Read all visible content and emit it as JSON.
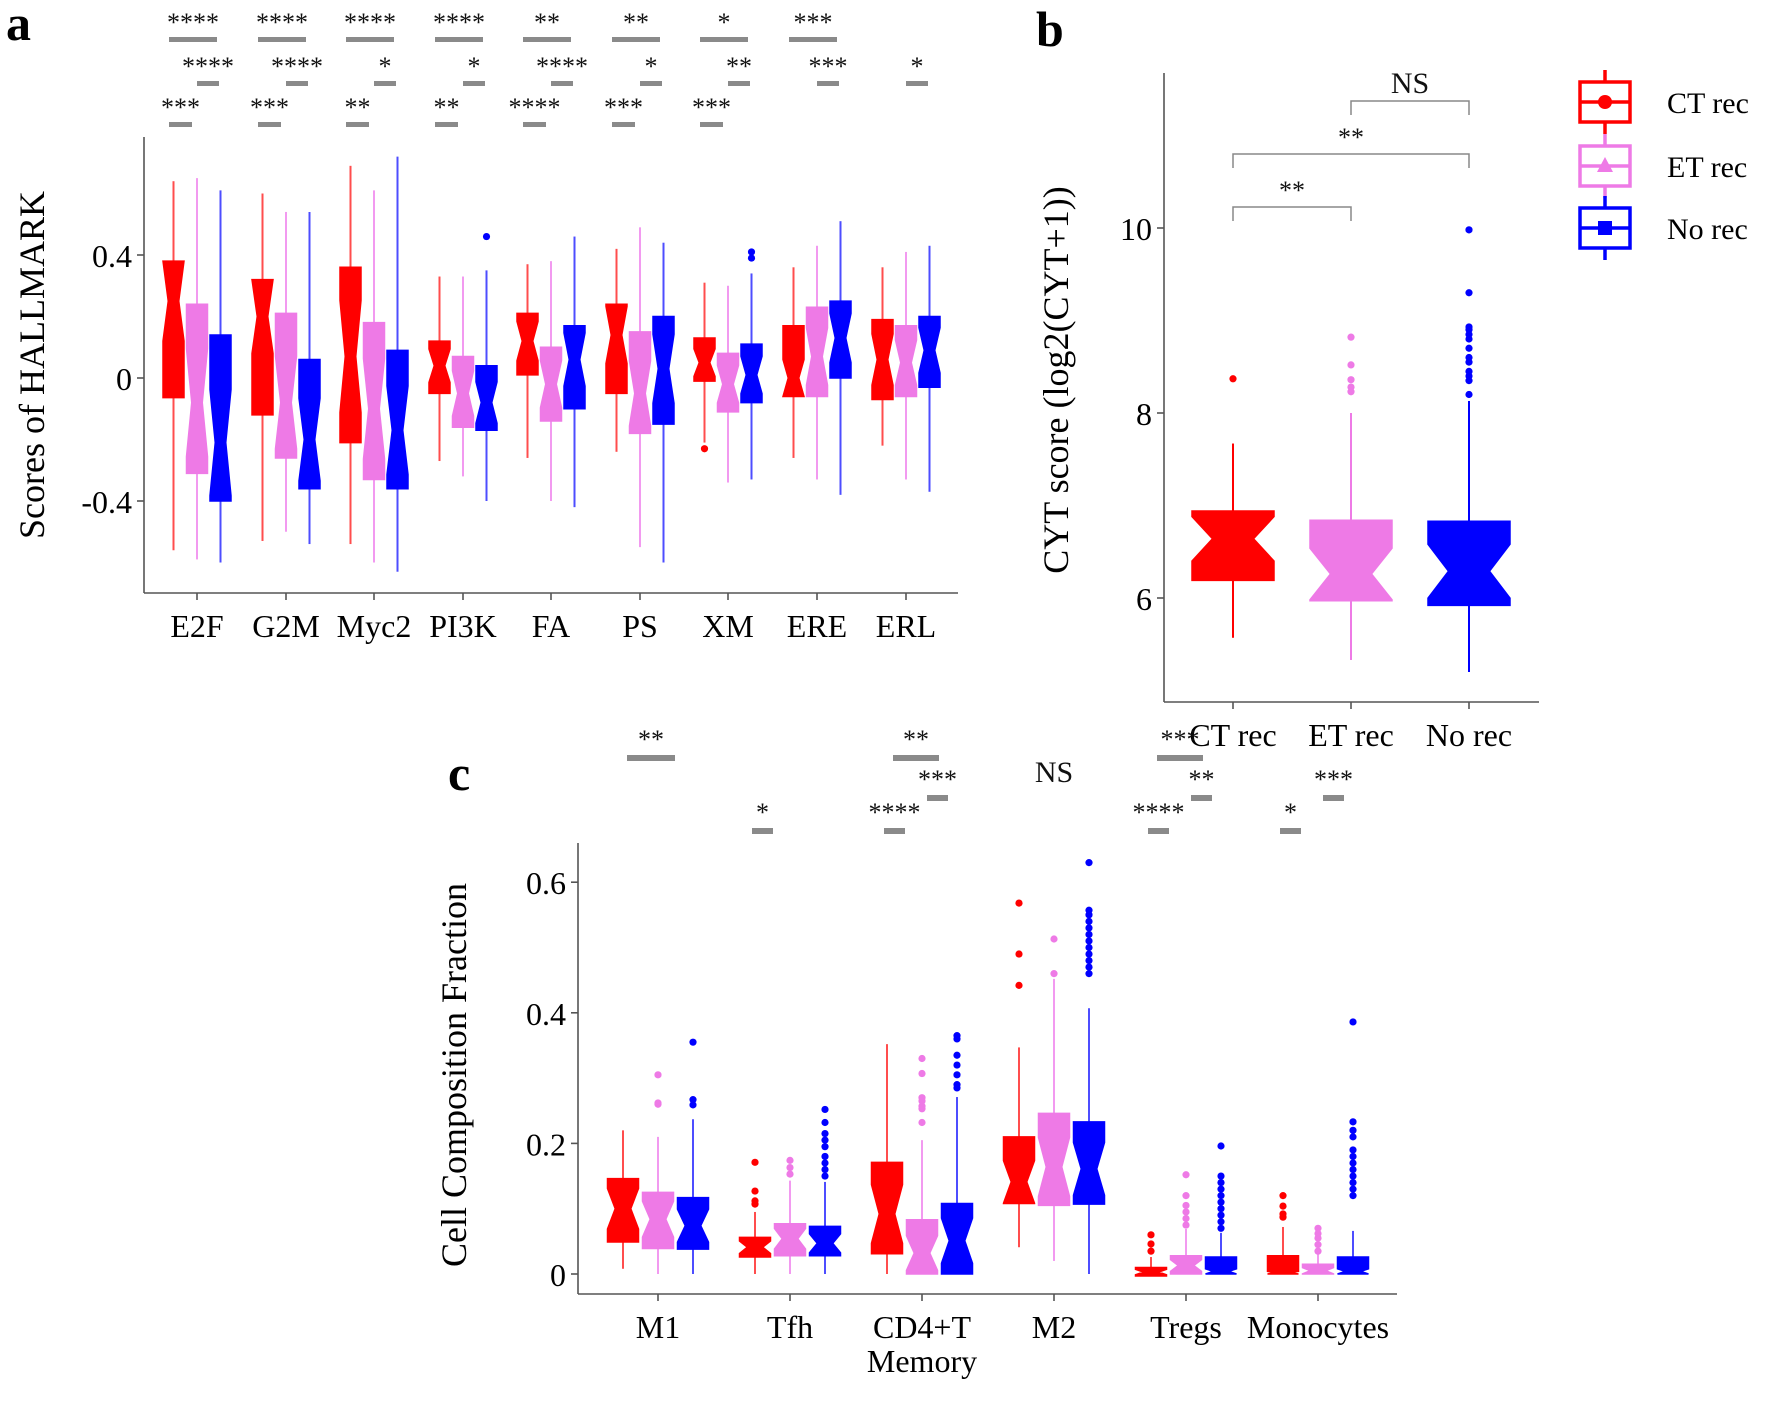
{
  "figure": {
    "panel_labels": [
      "a",
      "b",
      "c"
    ]
  },
  "groups": [
    {
      "name": "CT rec",
      "color": "#ff0000",
      "marker": "circle"
    },
    {
      "name": "ET rec",
      "color": "#ee7ae6",
      "marker": "triangle"
    },
    {
      "name": "No rec",
      "color": "#0000ff",
      "marker": "square"
    }
  ],
  "chart_data": [
    {
      "id": "a",
      "type": "boxplot",
      "title": "",
      "xlabel": "",
      "ylabel": "Scores of HALLMARK",
      "ylim": [
        -0.7,
        0.78
      ],
      "yticks": [
        -0.4,
        0,
        0.4
      ],
      "ytick_labels": [
        "-0.4",
        "0",
        "0.4"
      ],
      "grid": false,
      "categories": [
        "E2F",
        "G2M",
        "Myc2",
        "PI3K",
        "FA",
        "PS",
        "XM",
        "ERE",
        "ERL"
      ],
      "series": [
        {
          "name": "CT rec",
          "boxes": [
            {
              "q1": -0.064,
              "median": 0.25,
              "q3": 0.38,
              "lo": -0.56,
              "hi": 0.64,
              "outliers": []
            },
            {
              "q1": -0.12,
              "median": 0.2,
              "q3": 0.32,
              "lo": -0.53,
              "hi": 0.6,
              "outliers": []
            },
            {
              "q1": -0.21,
              "median": 0.07,
              "q3": 0.36,
              "lo": -0.54,
              "hi": 0.69,
              "outliers": []
            },
            {
              "q1": -0.05,
              "median": 0.04,
              "q3": 0.12,
              "lo": -0.27,
              "hi": 0.33,
              "outliers": []
            },
            {
              "q1": 0.01,
              "median": 0.12,
              "q3": 0.21,
              "lo": -0.26,
              "hi": 0.37,
              "outliers": []
            },
            {
              "q1": -0.05,
              "median": 0.14,
              "q3": 0.24,
              "lo": -0.24,
              "hi": 0.42,
              "outliers": []
            },
            {
              "q1": -0.01,
              "median": 0.05,
              "q3": 0.13,
              "lo": -0.21,
              "hi": 0.31,
              "outliers": [
                -0.23
              ]
            },
            {
              "q1": -0.06,
              "median": 0.0,
              "q3": 0.17,
              "lo": -0.26,
              "hi": 0.36,
              "outliers": []
            },
            {
              "q1": -0.07,
              "median": 0.06,
              "q3": 0.19,
              "lo": -0.22,
              "hi": 0.36,
              "outliers": []
            }
          ]
        },
        {
          "name": "ET rec",
          "boxes": [
            {
              "q1": -0.31,
              "median": -0.08,
              "q3": 0.24,
              "lo": -0.59,
              "hi": 0.65,
              "outliers": []
            },
            {
              "q1": -0.26,
              "median": -0.08,
              "q3": 0.21,
              "lo": -0.5,
              "hi": 0.54,
              "outliers": []
            },
            {
              "q1": -0.33,
              "median": -0.1,
              "q3": 0.18,
              "lo": -0.6,
              "hi": 0.61,
              "outliers": []
            },
            {
              "q1": -0.16,
              "median": -0.05,
              "q3": 0.07,
              "lo": -0.32,
              "hi": 0.33,
              "outliers": []
            },
            {
              "q1": -0.14,
              "median": -0.02,
              "q3": 0.1,
              "lo": -0.4,
              "hi": 0.38,
              "outliers": []
            },
            {
              "q1": -0.18,
              "median": -0.05,
              "q3": 0.15,
              "lo": -0.55,
              "hi": 0.49,
              "outliers": []
            },
            {
              "q1": -0.11,
              "median": -0.02,
              "q3": 0.08,
              "lo": -0.34,
              "hi": 0.3,
              "outliers": []
            },
            {
              "q1": -0.06,
              "median": 0.07,
              "q3": 0.23,
              "lo": -0.33,
              "hi": 0.43,
              "outliers": []
            },
            {
              "q1": -0.06,
              "median": 0.05,
              "q3": 0.17,
              "lo": -0.33,
              "hi": 0.41,
              "outliers": []
            }
          ]
        },
        {
          "name": "No rec",
          "boxes": [
            {
              "q1": -0.4,
              "median": -0.21,
              "q3": 0.14,
              "lo": -0.6,
              "hi": 0.61,
              "outliers": []
            },
            {
              "q1": -0.36,
              "median": -0.2,
              "q3": 0.06,
              "lo": -0.54,
              "hi": 0.54,
              "outliers": []
            },
            {
              "q1": -0.36,
              "median": -0.17,
              "q3": 0.09,
              "lo": -0.63,
              "hi": 0.72,
              "outliers": []
            },
            {
              "q1": -0.17,
              "median": -0.08,
              "q3": 0.04,
              "lo": -0.4,
              "hi": 0.35,
              "outliers": [
                0.46
              ]
            },
            {
              "q1": -0.1,
              "median": 0.06,
              "q3": 0.17,
              "lo": -0.42,
              "hi": 0.46,
              "outliers": []
            },
            {
              "q1": -0.15,
              "median": 0.03,
              "q3": 0.2,
              "lo": -0.6,
              "hi": 0.44,
              "outliers": []
            },
            {
              "q1": -0.08,
              "median": 0.01,
              "q3": 0.11,
              "lo": -0.33,
              "hi": 0.34,
              "outliers": [
                0.39,
                0.41
              ]
            },
            {
              "q1": 0.0,
              "median": 0.13,
              "q3": 0.25,
              "lo": -0.38,
              "hi": 0.51,
              "outliers": []
            },
            {
              "q1": -0.03,
              "median": 0.09,
              "q3": 0.2,
              "lo": -0.37,
              "hi": 0.43,
              "outliers": []
            }
          ]
        }
      ],
      "significance": [
        [
          {
            "label": "****",
            "pair": "CT-No"
          },
          {
            "label": "****",
            "pair": "ET-No"
          },
          {
            "label": "***",
            "pair": "CT-ET"
          }
        ],
        [
          {
            "label": "****",
            "pair": "CT-No"
          },
          {
            "label": "****",
            "pair": "ET-No"
          },
          {
            "label": "***",
            "pair": "CT-ET"
          }
        ],
        [
          {
            "label": "****",
            "pair": "CT-No"
          },
          {
            "label": "*",
            "pair": "ET-No"
          },
          {
            "label": "**",
            "pair": "CT-ET"
          }
        ],
        [
          {
            "label": "****",
            "pair": "CT-No"
          },
          {
            "label": "*",
            "pair": "ET-No"
          },
          {
            "label": "**",
            "pair": "CT-ET"
          }
        ],
        [
          {
            "label": "**",
            "pair": "CT-No"
          },
          {
            "label": "****",
            "pair": "ET-No"
          },
          {
            "label": "****",
            "pair": "CT-ET"
          }
        ],
        [
          {
            "label": "**",
            "pair": "CT-No"
          },
          {
            "label": "*",
            "pair": "ET-No"
          },
          {
            "label": "***",
            "pair": "CT-ET"
          }
        ],
        [
          {
            "label": "*",
            "pair": "CT-No"
          },
          {
            "label": "**",
            "pair": "ET-No"
          },
          {
            "label": "***",
            "pair": "CT-ET"
          }
        ],
        [
          {
            "label": "***",
            "pair": "CT-No"
          },
          {
            "label": "***",
            "pair": "ET-No"
          }
        ],
        [
          {
            "label": "*",
            "pair": "ET-No"
          }
        ]
      ]
    },
    {
      "id": "b",
      "type": "boxplot",
      "title": "",
      "xlabel": "",
      "ylabel": "CYT score (log2(CYT+1))",
      "ylim": [
        4.88,
        11.67
      ],
      "yticks": [
        6,
        8,
        10
      ],
      "ytick_labels": [
        "6",
        "8",
        "10"
      ],
      "grid": false,
      "categories": [
        "CT rec",
        "ET rec",
        "No rec"
      ],
      "boxes": [
        {
          "q1": 6.19,
          "median": 6.64,
          "q3": 6.94,
          "lo": 5.57,
          "hi": 7.67,
          "outliers": [
            8.37
          ]
        },
        {
          "q1": 5.97,
          "median": 6.26,
          "q3": 6.84,
          "lo": 5.33,
          "hi": 8.0,
          "outliers": [
            8.23,
            8.28,
            8.36,
            8.52,
            8.82
          ]
        },
        {
          "q1": 5.92,
          "median": 6.29,
          "q3": 6.83,
          "lo": 5.2,
          "hi": 8.13,
          "outliers": [
            8.2,
            8.35,
            8.4,
            8.45,
            8.55,
            8.6,
            8.7,
            8.8,
            8.85,
            8.9,
            8.93,
            9.3,
            9.98
          ]
        }
      ],
      "comparisons": [
        {
          "from": "CT rec",
          "to": "ET rec",
          "label": "**"
        },
        {
          "from": "CT rec",
          "to": "No rec",
          "label": "**"
        },
        {
          "from": "ET rec",
          "to": "No rec",
          "label": "NS"
        }
      ],
      "legend": {
        "position": "right",
        "entries": [
          "CT rec",
          "ET rec",
          "No rec"
        ]
      }
    },
    {
      "id": "c",
      "type": "boxplot",
      "title": "",
      "xlabel": "",
      "ylabel": "Cell Composition Fraction",
      "ylim": [
        -0.033,
        0.66
      ],
      "yticks": [
        0,
        0.2,
        0.4,
        0.6
      ],
      "ytick_labels": [
        "0",
        "0.2",
        "0.4",
        "0.6"
      ],
      "grid": false,
      "categories": [
        "M1",
        "Tfh",
        "CD4+T\nMemory",
        "M2",
        "Tregs",
        "Monocytes"
      ],
      "series": [
        {
          "name": "CT rec",
          "boxes": [
            {
              "q1": 0.049,
              "median": 0.1,
              "q3": 0.146,
              "lo": 0.008,
              "hi": 0.22,
              "outliers": []
            },
            {
              "q1": 0.026,
              "median": 0.041,
              "q3": 0.056,
              "lo": 0.0,
              "hi": 0.095,
              "outliers": [
                0.107,
                0.112,
                0.127,
                0.171
              ]
            },
            {
              "q1": 0.031,
              "median": 0.092,
              "q3": 0.171,
              "lo": 0.0,
              "hi": 0.352,
              "outliers": []
            },
            {
              "q1": 0.108,
              "median": 0.141,
              "q3": 0.21,
              "lo": 0.041,
              "hi": 0.347,
              "outliers": [
                0.442,
                0.49,
                0.568
              ]
            },
            {
              "q1": -0.003,
              "median": 0.003,
              "q3": 0.01,
              "lo": -0.003,
              "hi": 0.026,
              "outliers": [
                0.035,
                0.046,
                0.06
              ]
            },
            {
              "q1": 0.0,
              "median": 0.002,
              "q3": 0.028,
              "lo": 0.0,
              "hi": 0.072,
              "outliers": [
                0.087,
                0.092,
                0.104,
                0.12
              ]
            }
          ]
        },
        {
          "name": "ET rec",
          "boxes": [
            {
              "q1": 0.039,
              "median": 0.084,
              "q3": 0.125,
              "lo": 0.0,
              "hi": 0.21,
              "outliers": [
                0.26,
                0.262,
                0.305
              ]
            },
            {
              "q1": 0.028,
              "median": 0.054,
              "q3": 0.077,
              "lo": 0.0,
              "hi": 0.143,
              "outliers": [
                0.153,
                0.163,
                0.174
              ]
            },
            {
              "q1": 0.0,
              "median": 0.032,
              "q3": 0.083,
              "lo": 0.0,
              "hi": 0.205,
              "outliers": [
                0.232,
                0.253,
                0.257,
                0.265,
                0.27,
                0.307,
                0.33
              ]
            },
            {
              "q1": 0.105,
              "median": 0.164,
              "q3": 0.246,
              "lo": 0.02,
              "hi": 0.452,
              "outliers": [
                0.46,
                0.513
              ]
            },
            {
              "q1": 0.0,
              "median": 0.013,
              "q3": 0.028,
              "lo": 0.0,
              "hi": 0.069,
              "outliers": [
                0.075,
                0.085,
                0.095,
                0.105,
                0.12,
                0.152
              ]
            },
            {
              "q1": 0.0,
              "median": 0.005,
              "q3": 0.015,
              "lo": 0.0,
              "hi": 0.03,
              "outliers": [
                0.035,
                0.045,
                0.055,
                0.062,
                0.07
              ]
            }
          ]
        },
        {
          "name": "No rec",
          "boxes": [
            {
              "q1": 0.038,
              "median": 0.074,
              "q3": 0.117,
              "lo": 0.0,
              "hi": 0.237,
              "outliers": [
                0.259,
                0.267,
                0.355
              ]
            },
            {
              "q1": 0.028,
              "median": 0.047,
              "q3": 0.073,
              "lo": 0.0,
              "hi": 0.141,
              "outliers": [
                0.15,
                0.16,
                0.17,
                0.18,
                0.195,
                0.205,
                0.215,
                0.232,
                0.252
              ]
            },
            {
              "q1": 0.0,
              "median": 0.051,
              "q3": 0.108,
              "lo": 0.0,
              "hi": 0.271,
              "outliers": [
                0.285,
                0.29,
                0.305,
                0.32,
                0.335,
                0.36,
                0.365
              ]
            },
            {
              "q1": 0.107,
              "median": 0.161,
              "q3": 0.233,
              "lo": 0.0,
              "hi": 0.407,
              "outliers": [
                0.46,
                0.47,
                0.48,
                0.49,
                0.5,
                0.51,
                0.52,
                0.53,
                0.54,
                0.55,
                0.557,
                0.63
              ]
            },
            {
              "q1": 0.0,
              "median": 0.004,
              "q3": 0.026,
              "lo": 0.0,
              "hi": 0.063,
              "outliers": [
                0.07,
                0.08,
                0.09,
                0.1,
                0.11,
                0.12,
                0.13,
                0.14,
                0.15,
                0.196
              ]
            },
            {
              "q1": 0.0,
              "median": 0.004,
              "q3": 0.026,
              "lo": 0.0,
              "hi": 0.066,
              "outliers": [
                0.12,
                0.13,
                0.14,
                0.15,
                0.16,
                0.17,
                0.18,
                0.19,
                0.21,
                0.22,
                0.233,
                0.386
              ]
            }
          ]
        }
      ],
      "significance": [
        [
          {
            "label": "**",
            "pair": "CT-ET"
          }
        ],
        [
          {
            "label": "*",
            "pair": "CT-ET"
          }
        ],
        [
          {
            "label": "**",
            "pair": "CT-No"
          },
          {
            "label": "***",
            "pair": "ET-No"
          },
          {
            "label": "****",
            "pair": "CT-ET"
          }
        ],
        [
          {
            "label": "NS",
            "pair": "all"
          }
        ],
        [
          {
            "label": "***",
            "pair": "CT-No"
          },
          {
            "label": "**",
            "pair": "ET-No"
          },
          {
            "label": "****",
            "pair": "CT-ET"
          }
        ],
        [
          {
            "label": "***",
            "pair": "ET-No"
          },
          {
            "label": "*",
            "pair": "CT-ET"
          }
        ]
      ]
    }
  ]
}
